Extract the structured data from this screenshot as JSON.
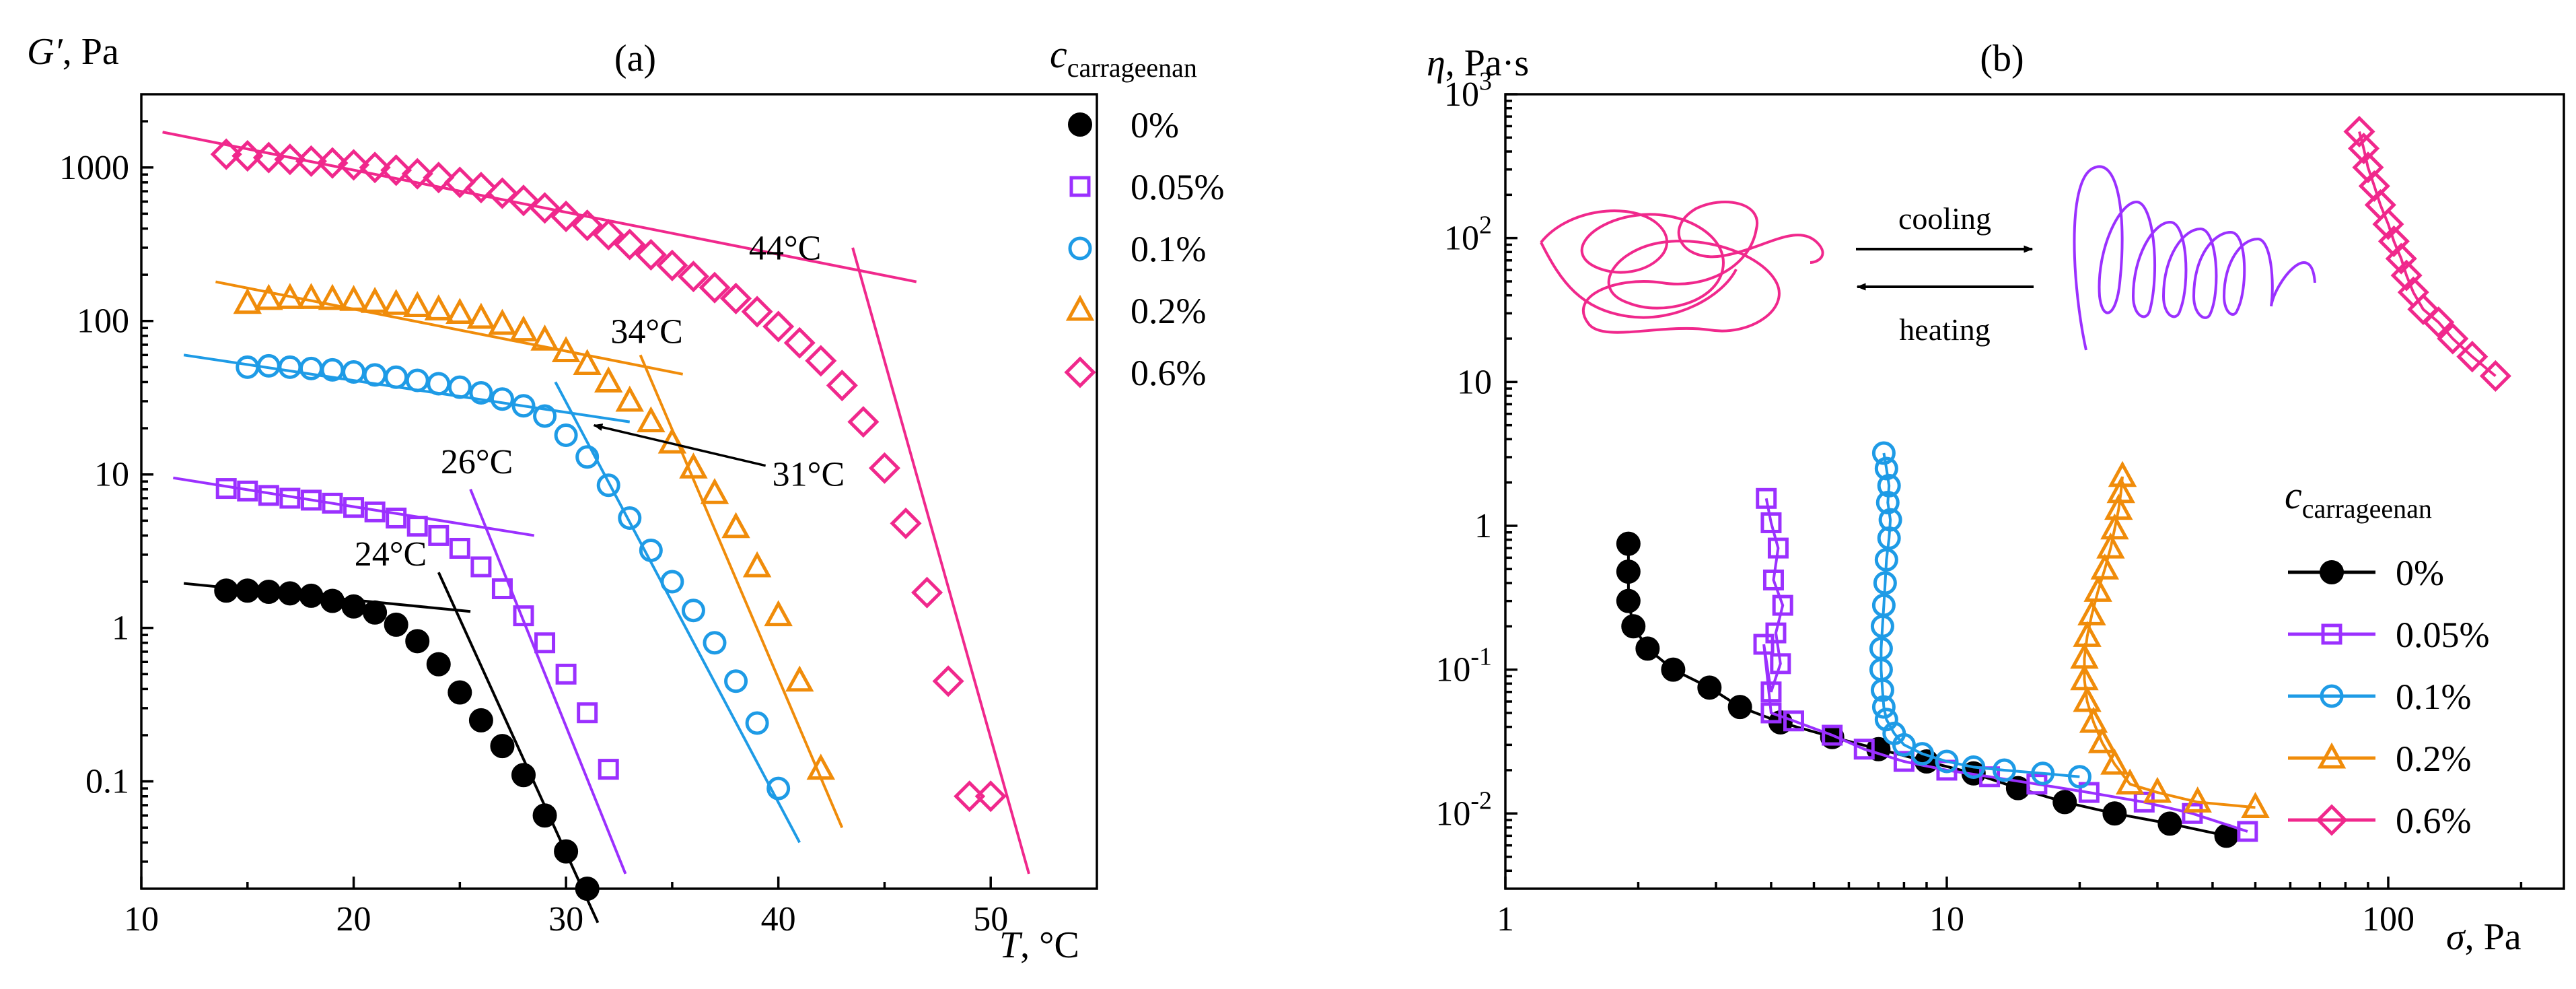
{
  "colors": {
    "0%": "#000000",
    "0.05%": "#9b30ff",
    "0.1%": "#1e9be6",
    "0.2%": "#f08c0a",
    "0.6%": "#f0288c"
  },
  "chart_data": [
    {
      "panel": "(a)",
      "type": "scatter",
      "xlabel_var": "T",
      "xlabel_unit": ", °C",
      "ylabel_var": "G′",
      "ylabel_unit": ", Pa",
      "xlim": [
        10,
        55
      ],
      "ylim": [
        0.02,
        3000
      ],
      "yscale": "log",
      "xticks": [
        10,
        20,
        30,
        40,
        50
      ],
      "yticks": [
        0.1,
        1,
        10,
        100,
        1000
      ],
      "ytick_labels": [
        "0.1",
        "1",
        "10",
        "100",
        "1000"
      ],
      "legend": {
        "title_var": "c",
        "title_sub": "carrageenan",
        "position": "top-right"
      },
      "series": [
        {
          "name": "0%",
          "marker": "circle-filled",
          "x": [
            14,
            15,
            16,
            17,
            18,
            19,
            20,
            21,
            22,
            23,
            24,
            25,
            26,
            27,
            28,
            29,
            30,
            31
          ],
          "y": [
            1.75,
            1.75,
            1.72,
            1.68,
            1.62,
            1.5,
            1.38,
            1.26,
            1.05,
            0.82,
            0.58,
            0.38,
            0.25,
            0.17,
            0.11,
            0.06,
            0.035,
            0.02
          ]
        },
        {
          "name": "0.05%",
          "marker": "square",
          "x": [
            14,
            15,
            16,
            17,
            18,
            19,
            20,
            21,
            22,
            23,
            24,
            25,
            26,
            27,
            28,
            29,
            30,
            31,
            32
          ],
          "y": [
            8.1,
            7.8,
            7.3,
            7.0,
            6.8,
            6.5,
            6.1,
            5.7,
            5.2,
            4.6,
            4.0,
            3.3,
            2.5,
            1.8,
            1.2,
            0.8,
            0.5,
            0.28,
            0.12
          ]
        },
        {
          "name": "0.1%",
          "marker": "circle-open",
          "x": [
            15,
            16,
            17,
            18,
            19,
            20,
            21,
            22,
            23,
            24,
            25,
            26,
            27,
            28,
            29,
            30,
            31,
            32,
            33,
            34,
            35,
            36,
            37,
            38,
            39,
            40
          ],
          "y": [
            50,
            51,
            50,
            49,
            48,
            46.5,
            44.5,
            43,
            41,
            39,
            37,
            34,
            31,
            28,
            24,
            18,
            13,
            8.5,
            5.2,
            3.2,
            2.0,
            1.3,
            0.8,
            0.45,
            0.24,
            0.09
          ]
        },
        {
          "name": "0.2%",
          "marker": "triangle",
          "x": [
            15,
            16,
            17,
            18,
            19,
            20,
            21,
            22,
            23,
            24,
            25,
            26,
            27,
            28,
            29,
            30,
            31,
            32,
            33,
            34,
            35,
            36,
            37,
            38,
            39,
            40,
            41,
            42
          ],
          "y": [
            130,
            138,
            140,
            140,
            138,
            136,
            132,
            128,
            124,
            118,
            112,
            104,
            95,
            86,
            75,
            63,
            52,
            40,
            30,
            22,
            16,
            11,
            7.5,
            4.5,
            2.5,
            1.2,
            0.45,
            0.12
          ]
        },
        {
          "name": "0.6%",
          "marker": "diamond",
          "x": [
            14,
            15,
            16,
            17,
            18,
            19,
            20,
            21,
            22,
            23,
            24,
            25,
            26,
            27,
            28,
            29,
            30,
            31,
            32,
            33,
            34,
            35,
            36,
            37,
            38,
            39,
            40,
            41,
            42,
            43,
            44,
            45,
            46,
            47,
            48,
            49,
            50
          ],
          "y": [
            1220,
            1190,
            1160,
            1130,
            1100,
            1070,
            1040,
            1000,
            960,
            910,
            860,
            800,
            740,
            680,
            610,
            545,
            480,
            420,
            365,
            315,
            270,
            230,
            195,
            165,
            140,
            115,
            92,
            72,
            55,
            38,
            22,
            11,
            4.8,
            1.7,
            0.45,
            0.08,
            0.08
          ]
        }
      ],
      "tangent_lines": [
        {
          "series": "0%",
          "x": [
            12,
            25.5
          ],
          "y": [
            1.95,
            1.28
          ]
        },
        {
          "series": "0%",
          "x": [
            24,
            31.5
          ],
          "y": [
            2.3,
            0.012
          ]
        },
        {
          "series": "0.05%",
          "x": [
            11.5,
            28.5
          ],
          "y": [
            9.5,
            4.0
          ]
        },
        {
          "series": "0.05%",
          "x": [
            25.5,
            32.8
          ],
          "y": [
            8.0,
            0.025
          ]
        },
        {
          "series": "0.1%",
          "x": [
            12,
            33
          ],
          "y": [
            60,
            22
          ]
        },
        {
          "series": "0.1%",
          "x": [
            29.5,
            41
          ],
          "y": [
            40,
            0.04
          ]
        },
        {
          "series": "0.2%",
          "x": [
            13.5,
            35.5
          ],
          "y": [
            180,
            45
          ]
        },
        {
          "series": "0.2%",
          "x": [
            33.5,
            43
          ],
          "y": [
            60,
            0.05
          ]
        },
        {
          "series": "0.6%",
          "x": [
            11,
            46.5
          ],
          "y": [
            1700,
            180
          ]
        },
        {
          "series": "0.6%",
          "x": [
            43.5,
            51.8
          ],
          "y": [
            300,
            0.025
          ]
        }
      ],
      "annotations": [
        {
          "text": "24°C",
          "series": "0%",
          "x": 24,
          "y": 2.3
        },
        {
          "text": "26°C",
          "series": "0.05%",
          "x": 26,
          "y": 8.5
        },
        {
          "text": "31°C",
          "series": "0.1%",
          "x": 31,
          "y": 22
        },
        {
          "text": "34°C",
          "series": "0.2%",
          "x": 34,
          "y": 60
        },
        {
          "text": "44°C",
          "series": "0.6%",
          "x": 44,
          "y": 210
        }
      ]
    },
    {
      "panel": "(b)",
      "type": "line",
      "xlabel_var": "σ",
      "xlabel_unit": ", Pa",
      "ylabel_var": "η",
      "ylabel_unit": ", Pa·s",
      "xscale": "log",
      "yscale": "log",
      "xlim": [
        1,
        250
      ],
      "ylim": [
        0.003,
        1000
      ],
      "xticks": [
        1,
        10,
        100
      ],
      "xtick_labels": [
        "1",
        "10",
        "100"
      ],
      "yticks": [
        0.01,
        0.1,
        1,
        10,
        100,
        1000
      ],
      "ytick_labels": [
        {
          "base": "10",
          "exp": "-2"
        },
        {
          "base": "10",
          "exp": "-1"
        },
        {
          "base": "1",
          "exp": ""
        },
        {
          "base": "10",
          "exp": ""
        },
        {
          "base": "10",
          "exp": "2"
        },
        {
          "base": "10",
          "exp": "3"
        }
      ],
      "legend": {
        "title_var": "c",
        "title_sub": "carrageenan",
        "position": "bottom-right"
      },
      "inset_labels": {
        "cooling": "cooling",
        "heating": "heating"
      },
      "series": [
        {
          "name": "0%",
          "marker": "circle-filled",
          "x": [
            1.9,
            1.9,
            1.9,
            1.95,
            2.1,
            2.4,
            2.9,
            3.4,
            4.2,
            5.5,
            7.0,
            9.0,
            11.5,
            14.5,
            18.5,
            24,
            32,
            43
          ],
          "y": [
            0.75,
            0.48,
            0.3,
            0.2,
            0.14,
            0.1,
            0.075,
            0.055,
            0.043,
            0.034,
            0.028,
            0.023,
            0.019,
            0.015,
            0.012,
            0.01,
            0.0085,
            0.007
          ]
        },
        {
          "name": "0.05%",
          "marker": "square",
          "x": [
            3.9,
            4.0,
            4.15,
            4.05,
            4.25,
            4.1,
            4.2,
            4.0,
            3.85,
            4.0,
            4.5,
            5.5,
            6.5,
            8.0,
            10,
            12.5,
            16,
            21,
            28,
            36,
            48
          ],
          "y": [
            1.55,
            1.05,
            0.7,
            0.42,
            0.28,
            0.18,
            0.11,
            0.07,
            0.15,
            0.05,
            0.044,
            0.035,
            0.028,
            0.023,
            0.02,
            0.018,
            0.016,
            0.014,
            0.012,
            0.01,
            0.0075
          ]
        },
        {
          "name": "0.1%",
          "marker": "circle-open",
          "x": [
            7.2,
            7.3,
            7.4,
            7.35,
            7.45,
            7.4,
            7.3,
            7.25,
            7.2,
            7.15,
            7.1,
            7.1,
            7.15,
            7.2,
            7.3,
            7.6,
            8.0,
            8.8,
            10,
            11.5,
            13.5,
            16.5,
            20
          ],
          "y": [
            3.2,
            2.5,
            1.9,
            1.45,
            1.1,
            0.82,
            0.58,
            0.4,
            0.28,
            0.2,
            0.14,
            0.1,
            0.072,
            0.055,
            0.045,
            0.036,
            0.03,
            0.026,
            0.023,
            0.021,
            0.02,
            0.019,
            0.018
          ]
        },
        {
          "name": "0.2%",
          "marker": "triangle",
          "x": [
            25,
            24.8,
            24.5,
            24,
            23.5,
            22.8,
            22,
            21.3,
            20.8,
            20.5,
            20.5,
            20.8,
            21.5,
            22.5,
            24,
            26,
            30,
            37,
            50
          ],
          "y": [
            2.2,
            1.7,
            1.3,
            0.95,
            0.7,
            0.5,
            0.35,
            0.24,
            0.17,
            0.12,
            0.085,
            0.06,
            0.043,
            0.031,
            0.022,
            0.016,
            0.014,
            0.012,
            0.011
          ]
        },
        {
          "name": "0.6%",
          "marker": "diamond",
          "x": [
            86,
            88,
            90,
            93,
            96,
            100,
            103,
            107,
            110,
            114,
            120,
            130,
            140,
            155,
            175
          ],
          "y": [
            550,
            420,
            310,
            230,
            170,
            125,
            95,
            72,
            55,
            42,
            32,
            26,
            20,
            15,
            11
          ]
        }
      ]
    }
  ]
}
